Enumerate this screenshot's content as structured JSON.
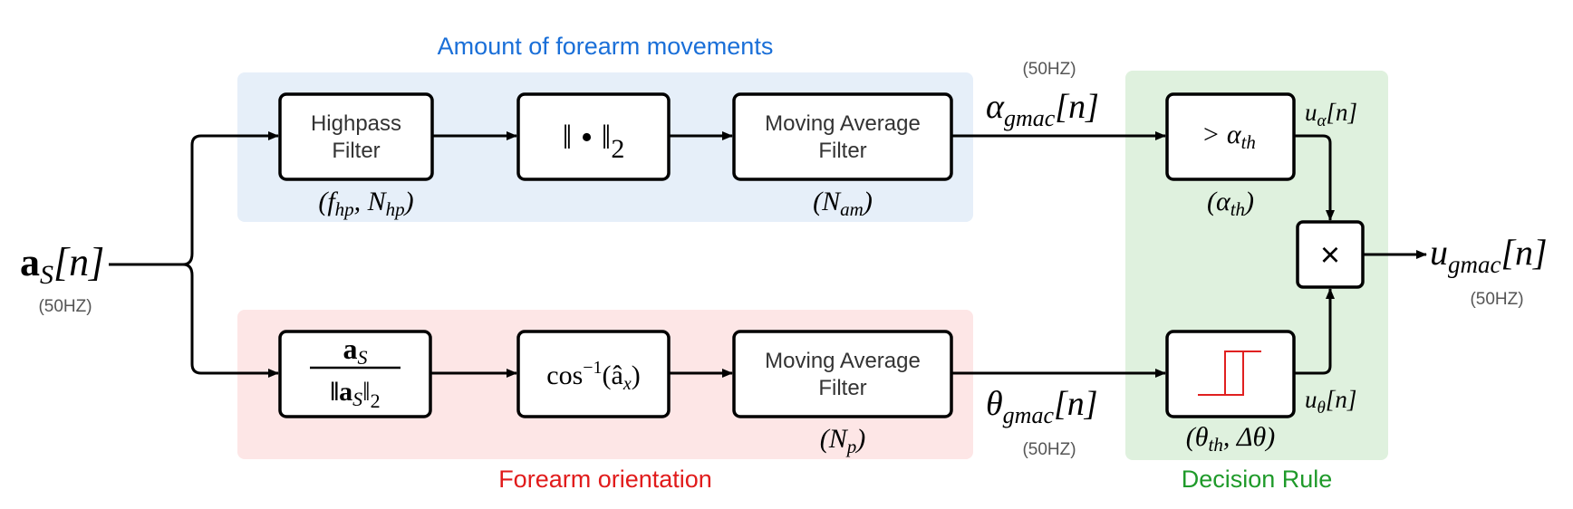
{
  "colors": {
    "movement_region": "#e6eff9",
    "orientation_region": "#fde6e6",
    "decision_region": "#dff1de",
    "movement_label": "#1a6fd8",
    "orientation_label": "#e11b1b",
    "decision_label": "#1f9a2a",
    "hysteresis": "#e02020"
  },
  "regions": {
    "movement": {
      "label": "Amount of forearm movements"
    },
    "orientation": {
      "label": "Forearm orientation"
    },
    "decision": {
      "label": "Decision Rule"
    }
  },
  "input": {
    "sym": "a",
    "sub": "S",
    "arg": "[n]",
    "rate": "(50HZ)"
  },
  "top_chain": {
    "highpass": {
      "line1": "Highpass",
      "line2": "Filter",
      "param_pre": "(f",
      "param_sub1": "hp",
      "param_mid": ", N",
      "param_sub2": "hp",
      "param_post": ")"
    },
    "norm": {
      "text": "‖ • ‖",
      "sub": "2"
    },
    "moving_avg": {
      "line1": "Moving Average",
      "line2": "Filter",
      "param_pre": "(N",
      "param_sub": "am",
      "param_post": ")"
    }
  },
  "bottom_chain": {
    "normalize": {
      "num_sym": "a",
      "num_sub": "S",
      "den_pre": "‖a",
      "den_sub": "S",
      "den_post": "‖",
      "den_post_sub": "2"
    },
    "arccos": {
      "pre": "cos",
      "sup": "−1",
      "post": "(â",
      "post_sub": "x",
      "close": ")"
    },
    "moving_avg": {
      "line1": "Moving Average",
      "line2": "Filter",
      "param_pre": "(N",
      "param_sub": "p",
      "param_post": ")"
    }
  },
  "signals": {
    "alpha": {
      "sym": "α",
      "sub": "gmac",
      "arg": "[n]",
      "rate": "(50HZ)"
    },
    "theta": {
      "sym": "θ",
      "sub": "gmac",
      "arg": "[n]",
      "rate": "(50HZ)"
    }
  },
  "decision": {
    "threshold": {
      "pre": "> α",
      "sub": "th"
    },
    "threshold_param": {
      "pre": "(α",
      "sub": "th",
      "post": ")"
    },
    "hysteresis_param": {
      "pre": "(θ",
      "sub": "th",
      "mid": ", Δθ",
      "post": ")"
    },
    "u_alpha": {
      "sym": "u",
      "sub": "α",
      "arg": "[n]"
    },
    "u_theta": {
      "sym": "u",
      "sub": "θ",
      "arg": "[n]"
    },
    "multiply": "×"
  },
  "output": {
    "sym": "u",
    "sub": "gmac",
    "arg": "[n]",
    "rate": "(50HZ)"
  }
}
